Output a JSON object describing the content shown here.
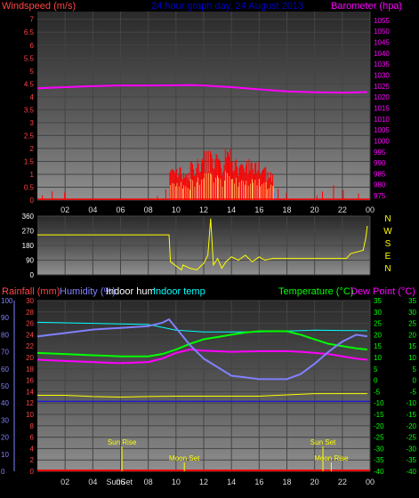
{
  "header": {
    "windspeed_label": "Windspeed (m/s)",
    "title": "24 hour graph day, 24 August 2013",
    "barometer_label": "Barometer (hpa)"
  },
  "compass_letters": [
    "N",
    "W",
    "S",
    "E",
    "N"
  ],
  "legend_bottom": {
    "rainfall": "Rainfall (mm)",
    "humidity": "Humidity (%)",
    "indoor_hum": "Indoor hum",
    "indoor_temp": "Indoor temp",
    "temperature": "Temperature (°C)",
    "dew_point": "Dew Point (°C)"
  },
  "colors": {
    "wind": "#ff0000",
    "wind_gust_fill": "#ffff88",
    "wind_avg_fill": "#4477ff",
    "barometer": "#ff00ff",
    "direction": "#ffff00",
    "rainfall": "#ff0000",
    "humidity": "#8080ff",
    "indoor_hum": "#ffffff",
    "indoor_temp": "#00ffff",
    "temperature": "#00ff00",
    "dew_point": "#ff00ff",
    "indoor_hum_line": "#0000ff",
    "text_yellow": "#ffff00",
    "axis_pink": "#ff4444",
    "axis_magenta": "#ff00ff",
    "axis_blue": "#8080ff",
    "axis_green": "#00ff00",
    "axis_cyan": "#00ffff",
    "grid": "#444444"
  },
  "x_ticks": [
    "02",
    "04",
    "06",
    "08",
    "10",
    "12",
    "14",
    "16",
    "18",
    "20",
    "22",
    "00"
  ],
  "events": [
    {
      "label": "Sun Rise",
      "hour": 6.1
    },
    {
      "label": "Moon Set",
      "hour": 10.6
    },
    {
      "label": "Sun Set",
      "hour": 20.6
    },
    {
      "label": "Moon Rise",
      "hour": 21.2
    },
    {
      "label": "SunSet",
      "hour": 21.0
    }
  ],
  "events_bottom_labels": [
    "Sun Rise",
    "Moon Set",
    "Sun Set",
    "Moon Rise"
  ],
  "sunset_label": "SunSet",
  "chart_data": [
    {
      "type": "line",
      "name": "wind-and-barometer",
      "x_range_hours": [
        0,
        24
      ],
      "wind_axis_ticks": [
        "0",
        "0.5",
        "1",
        "1.5",
        "2",
        "2.5",
        "3",
        "3.5",
        "4",
        "4.5",
        "5",
        "5.5",
        "6",
        "6.5",
        "7"
      ],
      "wind_ylim": [
        0,
        7.3
      ],
      "baro_axis_ticks": [
        "975",
        "980",
        "985",
        "990",
        "995",
        "1000",
        "1005",
        "1010",
        "1015",
        "1020",
        "1025",
        "1030",
        "1035",
        "1040",
        "1045",
        "1050",
        "1055"
      ],
      "baro_ylim": [
        973,
        1059
      ],
      "barometer": {
        "hours": [
          0,
          2,
          4,
          6,
          8,
          10,
          11,
          12,
          14,
          16,
          18,
          20,
          22,
          23.8
        ],
        "values": [
          1024,
          1024.5,
          1025,
          1025.3,
          1025.3,
          1025.4,
          1025.5,
          1025.3,
          1024.5,
          1023.5,
          1022.6,
          1022.2,
          1022,
          1022.3
        ]
      },
      "wind_gust_peaks": {
        "hours": [
          0.4,
          1.1,
          2.0,
          8.7,
          9.3,
          9.8,
          10.3,
          10.8,
          11.3,
          11.8,
          12.3,
          12.8,
          13.3,
          13.8,
          14.3,
          14.8,
          15.3,
          15.8,
          16.3,
          16.8,
          17.4,
          18.0,
          20.2,
          20.6,
          21.4,
          22.1,
          23.2
        ],
        "values": [
          0.3,
          0.5,
          0.4,
          0.2,
          0.5,
          1.2,
          1.3,
          1.1,
          1.5,
          1.6,
          1.9,
          1.8,
          1.6,
          2.1,
          1.6,
          1.4,
          1.6,
          1.5,
          1.3,
          1.1,
          0.7,
          0.5,
          0.3,
          0.5,
          0.8,
          0.5,
          0.3
        ]
      }
    },
    {
      "type": "line",
      "name": "wind-direction",
      "y_ticks": [
        "360",
        "270",
        "180",
        "90",
        "0"
      ],
      "ylim": [
        0,
        360
      ],
      "hours": [
        0,
        9.5,
        9.6,
        10.4,
        10.5,
        11.0,
        11.5,
        12.0,
        12.3,
        12.5,
        12.7,
        13.0,
        13.3,
        13.6,
        14.0,
        14.5,
        15.0,
        15.5,
        16.0,
        16.4,
        17.0,
        22.3,
        22.6,
        23.5,
        23.7,
        23.8
      ],
      "values": [
        245,
        245,
        80,
        30,
        60,
        40,
        30,
        70,
        120,
        345,
        60,
        100,
        40,
        80,
        110,
        90,
        120,
        80,
        110,
        90,
        100,
        100,
        130,
        150,
        230,
        300
      ]
    },
    {
      "type": "line",
      "name": "humidity-temperature",
      "x_range_hours": [
        0,
        24
      ],
      "humidity_ticks": [
        "0",
        "10",
        "20",
        "30",
        "40",
        "50",
        "60",
        "70",
        "80",
        "90",
        "100"
      ],
      "humidity_ylim": [
        0,
        100
      ],
      "rain_ticks": [
        "0",
        "2",
        "4",
        "6",
        "8",
        "10",
        "12",
        "14",
        "16",
        "18",
        "20",
        "22",
        "24",
        "26",
        "28",
        "30"
      ],
      "rain_ylim": [
        0,
        30
      ],
      "temp_ticks": [
        "-40",
        "-35",
        "-30",
        "-25",
        "-20",
        "-15",
        "-10",
        "-5",
        "0",
        "5",
        "10",
        "15",
        "20",
        "25",
        "30",
        "35"
      ],
      "temp_ylim": [
        -40,
        35
      ],
      "humidity": {
        "hours": [
          0,
          1,
          2,
          4,
          6,
          8,
          9,
          9.5,
          10,
          11,
          12,
          13,
          14,
          15,
          16,
          17,
          18,
          19,
          20,
          21,
          22,
          23,
          23.8
        ],
        "values": [
          79,
          80,
          81,
          83,
          84,
          85,
          87,
          89,
          84,
          74,
          66,
          61,
          56,
          55,
          54,
          54,
          54,
          57,
          63,
          70,
          76,
          80,
          79
        ]
      },
      "indoor_temp": {
        "hours": [
          0,
          4,
          8,
          10,
          12,
          16,
          20,
          23.8
        ],
        "values": [
          26.2,
          26.0,
          25.8,
          24.8,
          24.5,
          24.5,
          24.8,
          24.7
        ]
      },
      "temperature": {
        "hours": [
          0,
          2,
          4,
          6,
          8,
          9,
          10,
          11,
          12,
          13,
          14,
          15,
          16,
          17,
          18,
          19,
          20,
          21,
          22,
          23,
          23.8
        ],
        "values": [
          12,
          11.5,
          11,
          10.5,
          10.5,
          11.5,
          13.5,
          16,
          18,
          19,
          20,
          21,
          21.5,
          21.5,
          21.5,
          20,
          18,
          16,
          15,
          14,
          13.5
        ]
      },
      "dew_point": {
        "hours": [
          0,
          2,
          4,
          6,
          8,
          9,
          10,
          11,
          12,
          14,
          16,
          18,
          19,
          20,
          21,
          22,
          23,
          23.8
        ],
        "values": [
          9,
          8.5,
          8,
          7.5,
          8,
          9.5,
          12,
          13.5,
          13,
          12.5,
          12.8,
          12.8,
          12.5,
          12,
          11.5,
          10.5,
          9.5,
          9
        ]
      },
      "indoor_hum_flat_pct": 41,
      "rainfall_mm": 0,
      "indoor_hum_yellow": {
        "hours": [
          0,
          2,
          4,
          6,
          8,
          10,
          12,
          14,
          16,
          18,
          20,
          22,
          23.8
        ],
        "values": [
          44.5,
          44.5,
          43.8,
          43.5,
          43.8,
          44,
          44,
          44,
          44,
          44.8,
          45.5,
          45.5,
          45.5
        ]
      }
    }
  ]
}
